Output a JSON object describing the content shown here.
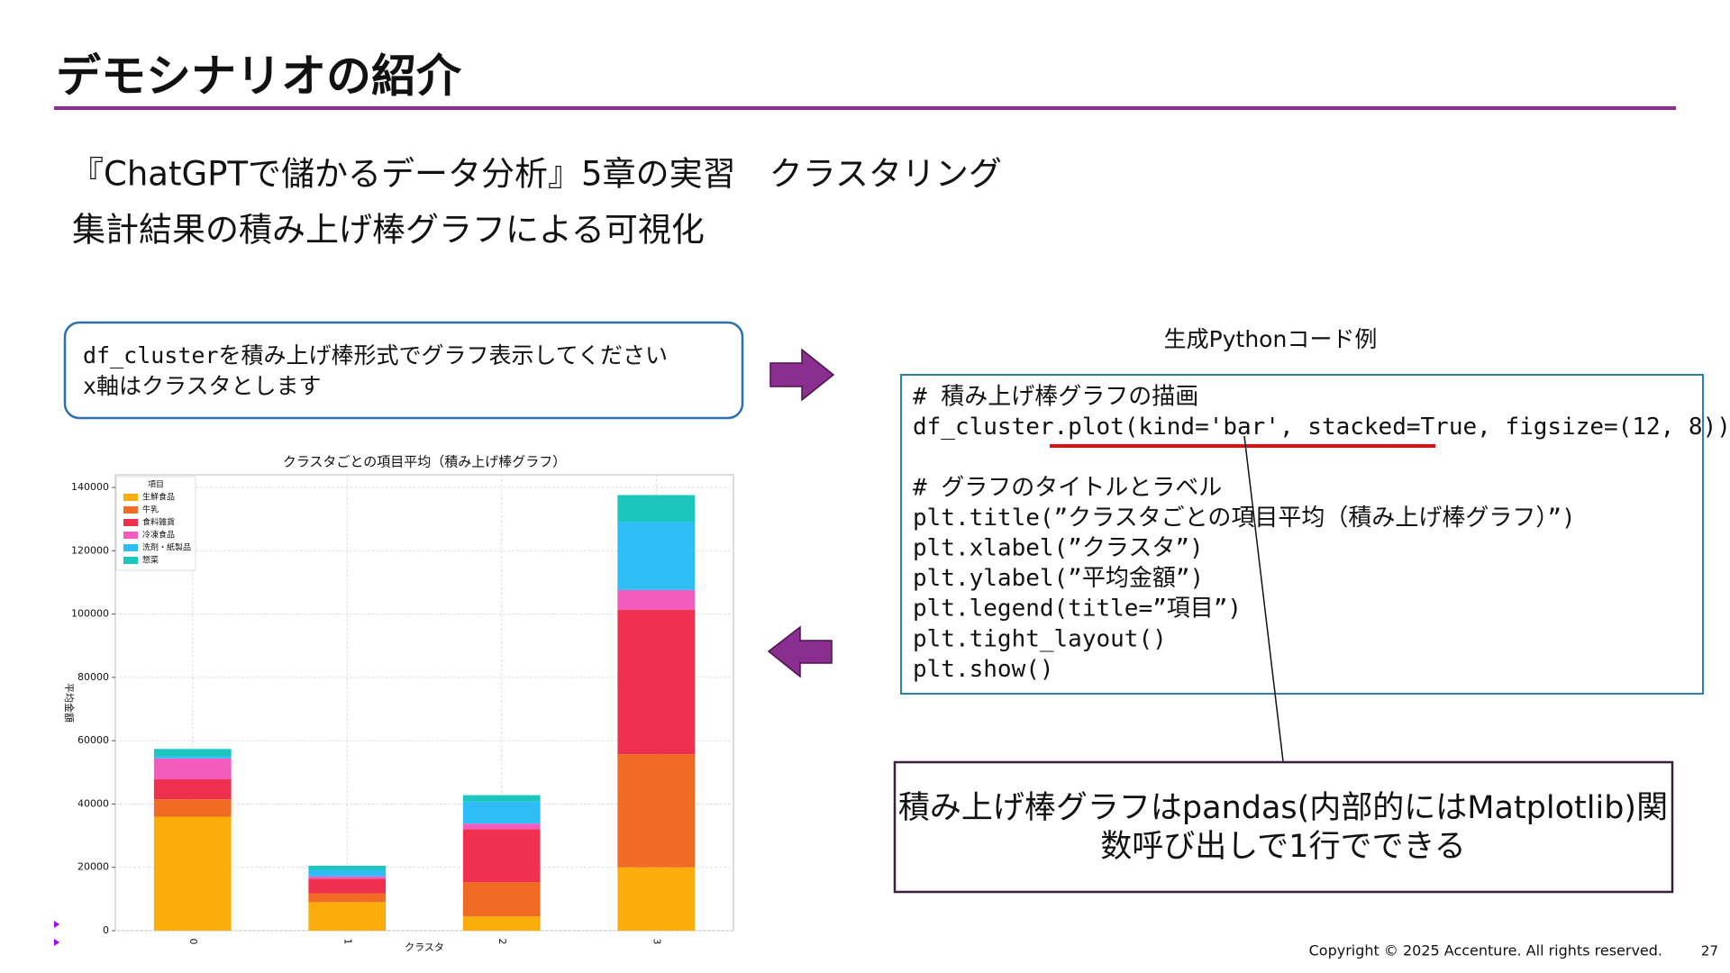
{
  "header": {
    "title": "デモシナリオの紹介"
  },
  "subtitle": [
    "『ChatGPTで儲かるデータ分析』5章の実習　クラスタリング",
    "集計結果の積み上げ棒グラフによる可視化"
  ],
  "prompt": [
    "df_clusterを積み上げ棒形式でグラフ表示してください",
    "x軸はクラスタとします"
  ],
  "code_caption": "生成Pythonコード例",
  "code": [
    [
      "# 積み上げ棒グラフの描画",
      "df_cluster.plot(kind='bar', stacked=True, figsize=(12, 8))"
    ],
    [
      "# グラフのタイトルとラベル",
      "plt.title(”クラスタごとの項目平均（積み上げ棒グラフ）”)",
      "plt.xlabel(”クラスタ”)",
      "plt.ylabel(”平均金額”)",
      "plt.legend(title=”項目”)",
      "plt.tight_layout()",
      "plt.show()"
    ]
  ],
  "callout": [
    "積み上げ棒グラフはpandas(内部的にはMatplotlib)関",
    "数呼び出しで1行でできる"
  ],
  "footer": {
    "copyright": "Copyright © 2025 Accenture. All rights reserved.",
    "page": "27"
  },
  "chart_data": {
    "type": "bar",
    "stacked": true,
    "title": "クラスタごとの項目平均（積み上げ棒グラフ）",
    "x_label": "クラスタ",
    "y_label": "平均金額",
    "legend_title": "項目",
    "categories": [
      "0",
      "1",
      "2",
      "3"
    ],
    "series": [
      {
        "name": "生鮮食品",
        "color": "#fbad0c",
        "values": [
          36000,
          9000,
          4500,
          20000
        ]
      },
      {
        "name": "牛乳",
        "color": "#f26b24",
        "values": [
          5500,
          2800,
          10800,
          35700
        ]
      },
      {
        "name": "食料雑貨",
        "color": "#f0304f",
        "values": [
          6300,
          4600,
          16700,
          45700
        ]
      },
      {
        "name": "冷凍食品",
        "color": "#f35bbd",
        "values": [
          6600,
          700,
          1800,
          6200
        ]
      },
      {
        "name": "洗剤・紙製品",
        "color": "#2fbdf5",
        "values": [
          800,
          2100,
          7000,
          21600
        ]
      },
      {
        "name": "惣菜",
        "color": "#1bc6bd",
        "values": [
          2200,
          1300,
          2000,
          8400
        ]
      }
    ],
    "ylim": [
      0,
      144000
    ],
    "yticks": [
      0,
      20000,
      40000,
      60000,
      80000,
      100000,
      120000,
      140000
    ],
    "grid": true
  }
}
